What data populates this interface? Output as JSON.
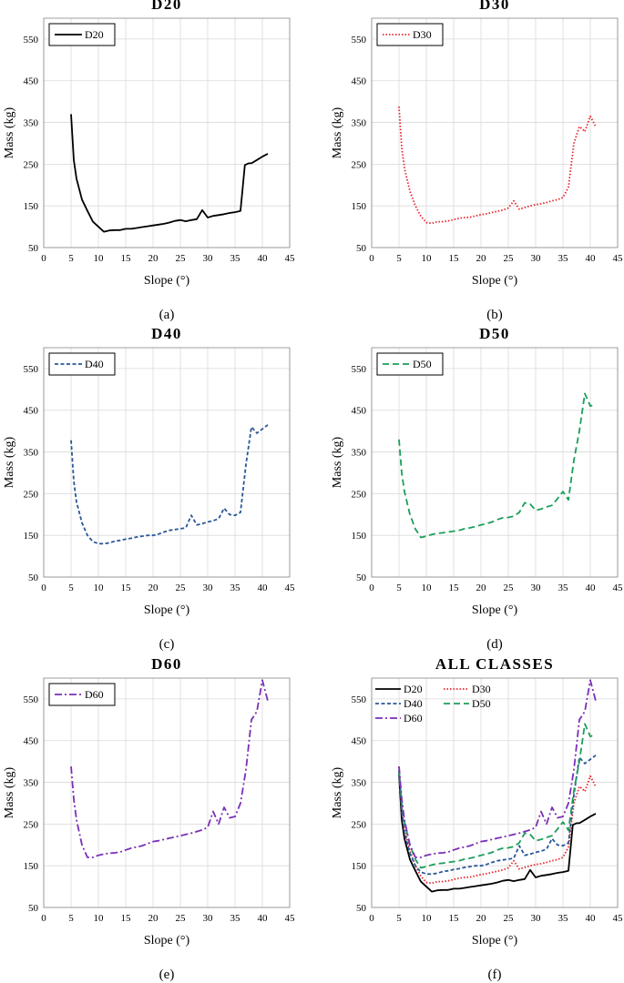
{
  "figure": {
    "chart_data": [
      {
        "type": "line",
        "panel": "a",
        "title": "D20",
        "caption": "(a)",
        "xlabel": "Slope (°)",
        "ylabel": "Mass (kg)",
        "xlim": [
          0,
          45
        ],
        "ylim": [
          50,
          600
        ],
        "xticks": [
          0,
          5,
          10,
          15,
          20,
          25,
          30,
          35,
          40,
          45
        ],
        "yticks": [
          50,
          150,
          250,
          350,
          450,
          550
        ],
        "legend": "top-left",
        "series": [
          {
            "name": "D20",
            "color": "#000000",
            "dash": "solid",
            "points": [
              [
                5,
                370
              ],
              [
                5.5,
                260
              ],
              [
                6,
                215
              ],
              [
                7,
                165
              ],
              [
                8,
                138
              ],
              [
                9,
                112
              ],
              [
                10,
                100
              ],
              [
                11,
                88
              ],
              [
                12,
                91
              ],
              [
                13,
                92
              ],
              [
                14,
                92
              ],
              [
                15,
                95
              ],
              [
                16,
                95
              ],
              [
                17,
                97
              ],
              [
                18,
                99
              ],
              [
                19,
                101
              ],
              [
                20,
                103
              ],
              [
                21,
                105
              ],
              [
                22,
                107
              ],
              [
                23,
                110
              ],
              [
                24,
                114
              ],
              [
                25,
                116
              ],
              [
                26,
                113
              ],
              [
                27,
                116
              ],
              [
                28,
                118
              ],
              [
                29,
                140
              ],
              [
                30,
                122
              ],
              [
                31,
                126
              ],
              [
                32,
                128
              ],
              [
                33,
                130
              ],
              [
                34,
                133
              ],
              [
                35,
                135
              ],
              [
                36,
                138
              ],
              [
                36.8,
                248
              ],
              [
                37.5,
                252
              ],
              [
                38,
                252
              ],
              [
                39,
                260
              ],
              [
                40,
                268
              ],
              [
                41,
                275
              ]
            ]
          }
        ]
      },
      {
        "type": "line",
        "panel": "b",
        "title": "D30",
        "caption": "(b)",
        "xlabel": "Slope (°)",
        "ylabel": "Mass (kg)",
        "xlim": [
          0,
          45
        ],
        "ylim": [
          50,
          600
        ],
        "xticks": [
          0,
          5,
          10,
          15,
          20,
          25,
          30,
          35,
          40,
          45
        ],
        "yticks": [
          50,
          150,
          250,
          350,
          450,
          550
        ],
        "legend": "top-left",
        "series": [
          {
            "name": "D30",
            "color": "#e8242b",
            "dash": "dotted",
            "points": [
              [
                5,
                388
              ],
              [
                5.5,
                290
              ],
              [
                6,
                240
              ],
              [
                7,
                185
              ],
              [
                8,
                150
              ],
              [
                9,
                125
              ],
              [
                10,
                110
              ],
              [
                11,
                108
              ],
              [
                12,
                112
              ],
              [
                13,
                112
              ],
              [
                14,
                114
              ],
              [
                15,
                117
              ],
              [
                16,
                120
              ],
              [
                17,
                122
              ],
              [
                18,
                123
              ],
              [
                19,
                126
              ],
              [
                20,
                129
              ],
              [
                21,
                131
              ],
              [
                22,
                134
              ],
              [
                23,
                137
              ],
              [
                24,
                140
              ],
              [
                25,
                145
              ],
              [
                26,
                162
              ],
              [
                27,
                142
              ],
              [
                28,
                146
              ],
              [
                29,
                150
              ],
              [
                30,
                153
              ],
              [
                31,
                155
              ],
              [
                32,
                158
              ],
              [
                33,
                162
              ],
              [
                34,
                165
              ],
              [
                35,
                170
              ],
              [
                36,
                195
              ],
              [
                37,
                300
              ],
              [
                38,
                340
              ],
              [
                38.5,
                335
              ],
              [
                39,
                328
              ],
              [
                40,
                365
              ],
              [
                41,
                340
              ]
            ]
          }
        ]
      },
      {
        "type": "line",
        "panel": "c",
        "title": "D40",
        "caption": "(c)",
        "xlabel": "Slope (°)",
        "ylabel": "Mass (kg)",
        "xlim": [
          0,
          45
        ],
        "ylim": [
          50,
          600
        ],
        "xticks": [
          0,
          5,
          10,
          15,
          20,
          25,
          30,
          35,
          40,
          45
        ],
        "yticks": [
          50,
          150,
          250,
          350,
          450,
          550
        ],
        "legend": "top-left",
        "series": [
          {
            "name": "D40",
            "color": "#2a5898",
            "dash": "dashed",
            "points": [
              [
                5,
                378
              ],
              [
                5.5,
                280
              ],
              [
                6,
                230
              ],
              [
                7,
                180
              ],
              [
                8,
                150
              ],
              [
                9,
                135
              ],
              [
                10,
                130
              ],
              [
                11,
                130
              ],
              [
                12,
                132
              ],
              [
                13,
                136
              ],
              [
                14,
                138
              ],
              [
                15,
                141
              ],
              [
                16,
                143
              ],
              [
                17,
                146
              ],
              [
                18,
                148
              ],
              [
                19,
                150
              ],
              [
                20,
                150
              ],
              [
                21,
                153
              ],
              [
                22,
                158
              ],
              [
                23,
                162
              ],
              [
                24,
                164
              ],
              [
                25,
                166
              ],
              [
                26,
                168
              ],
              [
                27,
                198
              ],
              [
                28,
                175
              ],
              [
                29,
                178
              ],
              [
                30,
                182
              ],
              [
                31,
                185
              ],
              [
                32,
                190
              ],
              [
                33,
                215
              ],
              [
                34,
                200
              ],
              [
                35,
                198
              ],
              [
                36,
                205
              ],
              [
                37,
                320
              ],
              [
                38,
                410
              ],
              [
                39,
                395
              ],
              [
                40,
                405
              ],
              [
                41,
                415
              ]
            ]
          }
        ]
      },
      {
        "type": "line",
        "panel": "d",
        "title": "D50",
        "caption": "(d)",
        "xlabel": "Slope (°)",
        "ylabel": "Mass (kg)",
        "xlim": [
          0,
          45
        ],
        "ylim": [
          50,
          600
        ],
        "xticks": [
          0,
          5,
          10,
          15,
          20,
          25,
          30,
          35,
          40,
          45
        ],
        "yticks": [
          50,
          150,
          250,
          350,
          450,
          550
        ],
        "legend": "top-left",
        "series": [
          {
            "name": "D50",
            "color": "#1a9e5a",
            "dash": "longdash",
            "points": [
              [
                5,
                380
              ],
              [
                5.5,
                300
              ],
              [
                6,
                255
              ],
              [
                7,
                200
              ],
              [
                8,
                165
              ],
              [
                9,
                145
              ],
              [
                10,
                148
              ],
              [
                11,
                152
              ],
              [
                12,
                155
              ],
              [
                13,
                156
              ],
              [
                14,
                158
              ],
              [
                15,
                160
              ],
              [
                16,
                162
              ],
              [
                17,
                166
              ],
              [
                18,
                168
              ],
              [
                19,
                171
              ],
              [
                20,
                175
              ],
              [
                21,
                178
              ],
              [
                22,
                182
              ],
              [
                23,
                188
              ],
              [
                24,
                192
              ],
              [
                25,
                193
              ],
              [
                26,
                196
              ],
              [
                27,
                205
              ],
              [
                28,
                228
              ],
              [
                29,
                225
              ],
              [
                30,
                210
              ],
              [
                31,
                213
              ],
              [
                32,
                218
              ],
              [
                33,
                222
              ],
              [
                34,
                238
              ],
              [
                35,
                255
              ],
              [
                36,
                235
              ],
              [
                37,
                330
              ],
              [
                38,
                400
              ],
              [
                39,
                490
              ],
              [
                40,
                460
              ],
              [
                41,
                465
              ]
            ]
          }
        ]
      },
      {
        "type": "line",
        "panel": "e",
        "title": "D60",
        "caption": "(e)",
        "xlabel": "Slope (°)",
        "ylabel": "Mass (kg)",
        "xlim": [
          0,
          45
        ],
        "ylim": [
          50,
          600
        ],
        "xticks": [
          0,
          5,
          10,
          15,
          20,
          25,
          30,
          35,
          40,
          45
        ],
        "yticks": [
          50,
          150,
          250,
          350,
          450,
          550
        ],
        "legend": "top-left",
        "series": [
          {
            "name": "D60",
            "color": "#7a2fb8",
            "dash": "dashdot",
            "points": [
              [
                5,
                388
              ],
              [
                5.5,
                310
              ],
              [
                6,
                260
              ],
              [
                7,
                200
              ],
              [
                8,
                170
              ],
              [
                9,
                170
              ],
              [
                10,
                175
              ],
              [
                11,
                178
              ],
              [
                12,
                180
              ],
              [
                13,
                181
              ],
              [
                14,
                183
              ],
              [
                15,
                188
              ],
              [
                16,
                192
              ],
              [
                17,
                195
              ],
              [
                18,
                198
              ],
              [
                19,
                203
              ],
              [
                20,
                208
              ],
              [
                21,
                210
              ],
              [
                22,
                213
              ],
              [
                23,
                216
              ],
              [
                24,
                219
              ],
              [
                25,
                222
              ],
              [
                26,
                225
              ],
              [
                27,
                228
              ],
              [
                28,
                232
              ],
              [
                29,
                236
              ],
              [
                30,
                242
              ],
              [
                31,
                280
              ],
              [
                32,
                250
              ],
              [
                33,
                290
              ],
              [
                34,
                265
              ],
              [
                35,
                268
              ],
              [
                36,
                300
              ],
              [
                37,
                380
              ],
              [
                38,
                500
              ],
              [
                39,
                520
              ],
              [
                40,
                595
              ],
              [
                41,
                545
              ]
            ]
          }
        ]
      },
      {
        "type": "line",
        "panel": "f",
        "title": "ALL CLASSES",
        "caption": "(f)",
        "xlabel": "Slope (°)",
        "ylabel": "Mass (kg)",
        "xlim": [
          0,
          45
        ],
        "ylim": [
          50,
          600
        ],
        "xticks": [
          0,
          5,
          10,
          15,
          20,
          25,
          30,
          35,
          40,
          45
        ],
        "yticks": [
          50,
          150,
          250,
          350,
          450,
          550
        ],
        "legend": "top-left",
        "series_ref": [
          "D20",
          "D30",
          "D40",
          "D50",
          "D60"
        ]
      }
    ]
  }
}
